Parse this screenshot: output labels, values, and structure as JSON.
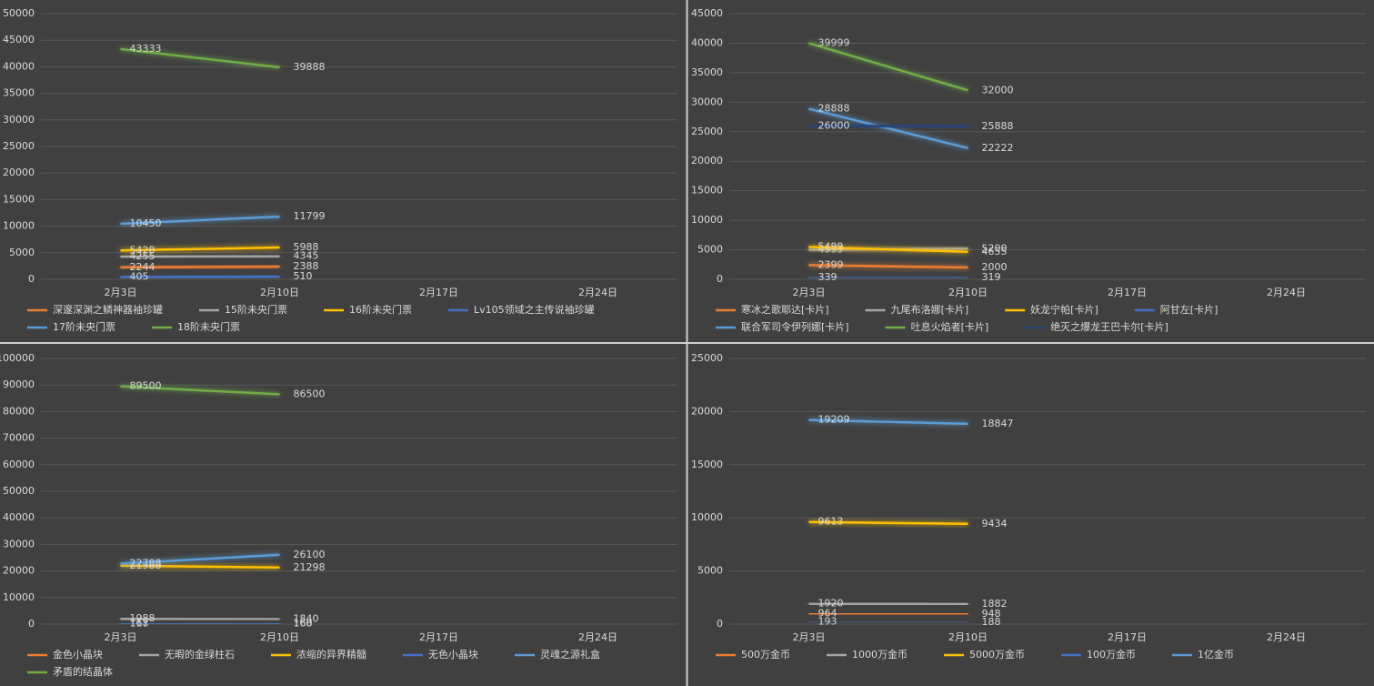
{
  "chart_data": [
    {
      "type": "line",
      "categories": [
        "2月3日",
        "2月10日",
        "2月17日",
        "2月24日"
      ],
      "ylim": [
        0,
        50000
      ],
      "yticks": [
        0,
        5000,
        10000,
        15000,
        20000,
        25000,
        30000,
        35000,
        40000,
        45000,
        50000
      ],
      "grid": true,
      "legend": "bottom",
      "series": [
        {
          "name": "深邃深渊之鳞神器袖珍罐",
          "color": "#ed7d31",
          "values": [
            2244,
            2388,
            null,
            null
          ]
        },
        {
          "name": "15阶未央门票",
          "color": "#a5a5a5",
          "values": [
            4255,
            4345,
            null,
            null
          ]
        },
        {
          "name": "16阶未央门票",
          "color": "#ffc000",
          "values": [
            5428,
            5988,
            null,
            null
          ]
        },
        {
          "name": "Lv105领域之主传说袖珍罐",
          "color": "#4472c4",
          "values": [
            405,
            510,
            null,
            null
          ]
        },
        {
          "name": "17阶未央门票",
          "color": "#5b9bd5",
          "values": [
            10450,
            11799,
            null,
            null
          ]
        },
        {
          "name": "18阶未央门票",
          "color": "#70ad47",
          "values": [
            43333,
            39888,
            null,
            null
          ]
        }
      ]
    },
    {
      "type": "line",
      "categories": [
        "2月3日",
        "2月10日",
        "2月17日",
        "2月24日"
      ],
      "ylim": [
        0,
        45000
      ],
      "yticks": [
        0,
        5000,
        10000,
        15000,
        20000,
        25000,
        30000,
        35000,
        40000,
        45000
      ],
      "grid": true,
      "legend": "bottom",
      "series": [
        {
          "name": "寒冰之歌耶达[卡片]",
          "color": "#ed7d31",
          "values": [
            2399,
            2000,
            null,
            null
          ]
        },
        {
          "name": "九尾布洛娜[卡片]",
          "color": "#a5a5a5",
          "values": [
            4999,
            5200,
            null,
            null
          ]
        },
        {
          "name": "妖龙宁帕[卡片]",
          "color": "#ffc000",
          "values": [
            5499,
            4655,
            null,
            null
          ]
        },
        {
          "name": "阿甘左[卡片]",
          "color": "#4472c4",
          "values": [
            339,
            319,
            null,
            null
          ]
        },
        {
          "name": "联合军司令伊列娜[卡片]",
          "color": "#5b9bd5",
          "values": [
            28888,
            22222,
            null,
            null
          ]
        },
        {
          "name": "吐息火焰者[卡片]",
          "color": "#70ad47",
          "values": [
            39999,
            32000,
            null,
            null
          ]
        },
        {
          "name": "绝灭之爆龙王巴卡尔[卡片]",
          "color": "#264478",
          "values": [
            26000,
            25888,
            null,
            null
          ]
        }
      ]
    },
    {
      "type": "line",
      "categories": [
        "2月3日",
        "2月10日",
        "2月17日",
        "2月24日"
      ],
      "ylim": [
        0,
        100000
      ],
      "yticks": [
        0,
        10000,
        20000,
        30000,
        40000,
        50000,
        60000,
        70000,
        80000,
        90000,
        100000
      ],
      "grid": true,
      "legend": "bottom",
      "series": [
        {
          "name": "金色小晶块",
          "color": "#ed7d31",
          "values": [
            118,
            168,
            null,
            null
          ]
        },
        {
          "name": "无暇的金绿柱石",
          "color": "#a5a5a5",
          "values": [
            1988,
            1840,
            null,
            null
          ]
        },
        {
          "name": "浓缩的异界精髓",
          "color": "#ffc000",
          "values": [
            21988,
            21298,
            null,
            null
          ]
        },
        {
          "name": "无色小晶块",
          "color": "#4472c4",
          "values": [
            167,
            160,
            null,
            null
          ]
        },
        {
          "name": "灵魂之源礼盒",
          "color": "#5b9bd5",
          "values": [
            22788,
            26100,
            null,
            null
          ]
        },
        {
          "name": "矛盾的结晶体",
          "color": "#70ad47",
          "values": [
            89500,
            86500,
            null,
            null
          ]
        }
      ]
    },
    {
      "type": "line",
      "categories": [
        "2月3日",
        "2月10日",
        "2月17日",
        "2月24日"
      ],
      "ylim": [
        0,
        25000
      ],
      "yticks": [
        0,
        5000,
        10000,
        15000,
        20000,
        25000
      ],
      "grid": true,
      "legend": "bottom",
      "series": [
        {
          "name": "500万金币",
          "color": "#ed7d31",
          "values": [
            964,
            948,
            null,
            null
          ]
        },
        {
          "name": "1000万金币",
          "color": "#a5a5a5",
          "values": [
            1920,
            1882,
            null,
            null
          ]
        },
        {
          "name": "5000万金币",
          "color": "#ffc000",
          "values": [
            9613,
            9434,
            null,
            null
          ]
        },
        {
          "name": "100万金币",
          "color": "#4472c4",
          "values": [
            193,
            188,
            null,
            null
          ]
        },
        {
          "name": "1亿金币",
          "color": "#5b9bd5",
          "values": [
            19209,
            18847,
            null,
            null
          ]
        }
      ]
    }
  ]
}
